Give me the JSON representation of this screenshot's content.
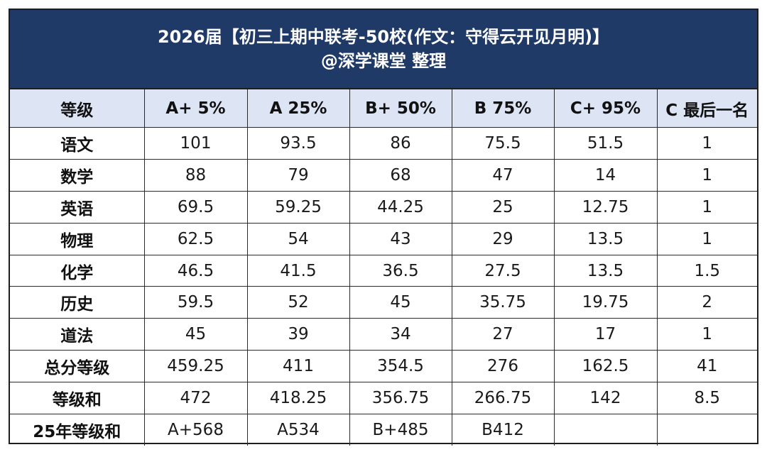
{
  "title": {
    "line1": "2026届【初三上期中联考-50校(作文：守得云开见月明)】",
    "line2": "@深学课堂 整理"
  },
  "colors": {
    "title_background": "#1f3a66",
    "header_background": "#dde4f4",
    "border": "#1e1e1e"
  },
  "table": {
    "headers": [
      "等级",
      "A+ 5%",
      "A 25%",
      "B+ 50%",
      "B 75%",
      "C+ 95%",
      "C 最后一名"
    ],
    "rows": [
      [
        "语文",
        "101",
        "93.5",
        "86",
        "75.5",
        "51.5",
        "1"
      ],
      [
        "数学",
        "88",
        "79",
        "68",
        "47",
        "14",
        "1"
      ],
      [
        "英语",
        "69.5",
        "59.25",
        "44.25",
        "25",
        "12.75",
        "1"
      ],
      [
        "物理",
        "62.5",
        "54",
        "43",
        "29",
        "13.5",
        "1"
      ],
      [
        "化学",
        "46.5",
        "41.5",
        "36.5",
        "27.5",
        "13.5",
        "1.5"
      ],
      [
        "历史",
        "59.5",
        "52",
        "45",
        "35.75",
        "19.75",
        "2"
      ],
      [
        "道法",
        "45",
        "39",
        "34",
        "27",
        "17",
        "1"
      ],
      [
        "总分等级",
        "459.25",
        "411",
        "354.5",
        "276",
        "162.5",
        "41"
      ],
      [
        "等级和",
        "472",
        "418.25",
        "356.75",
        "266.75",
        "142",
        "8.5"
      ],
      [
        "25年等级和",
        "A+568",
        "A534",
        "B+485",
        "B412",
        "",
        ""
      ]
    ]
  }
}
